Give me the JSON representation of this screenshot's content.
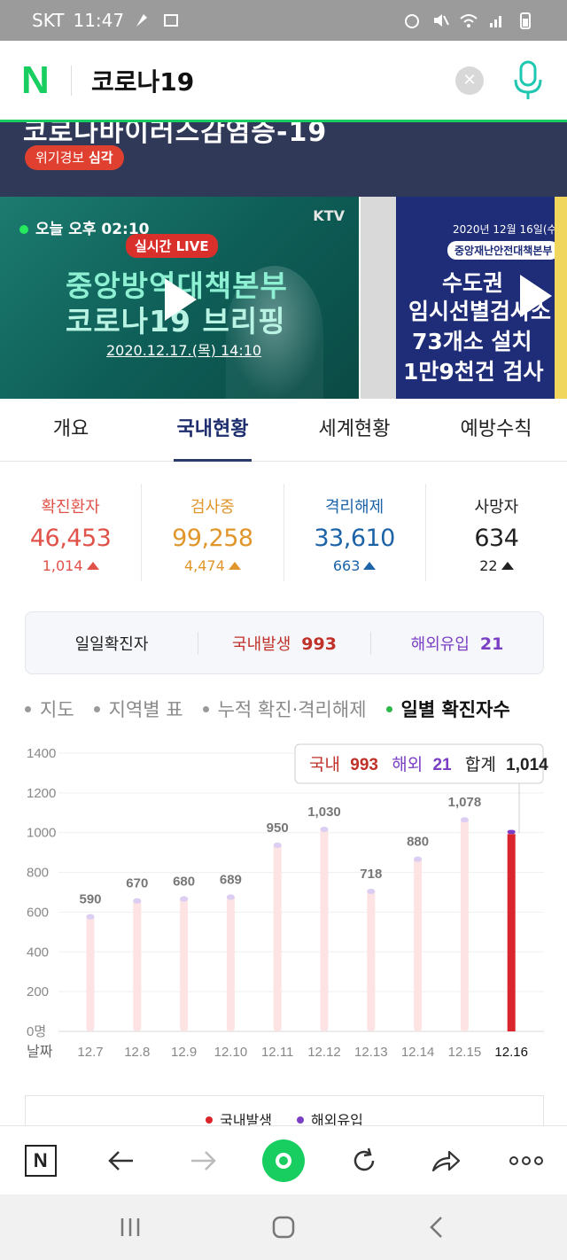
{
  "status_bar": {
    "carrier": "SKT",
    "time": "11:47"
  },
  "search": {
    "query": "코로나19"
  },
  "topic": {
    "title": "코로나바이러스감염증-19",
    "alert_label": "위기경보",
    "alert_level": "심각"
  },
  "videos": [
    {
      "time": "오늘 오후 02:10",
      "source": "KTV",
      "live": "실시간 LIVE",
      "line1": "중앙방역대책본부",
      "line2": "코로나19 브리핑",
      "date": "2020.12.17.(목) 14:10"
    },
    {
      "date": "2020년 12월 16일(수)",
      "org": "중앙재난안전대책본부",
      "line1": "수도권",
      "line2": "임시선별검사소",
      "line3": "73개소 설치",
      "line4": "1만9천건 검사"
    }
  ],
  "tabs": [
    "개요",
    "국내현황",
    "세계현황",
    "예방수칙"
  ],
  "stats": [
    {
      "label": "확진환자",
      "value": "46,453",
      "delta": "1,014",
      "color": "#e0524a"
    },
    {
      "label": "검사중",
      "value": "99,258",
      "delta": "4,474",
      "color": "#e0962b"
    },
    {
      "label": "격리해제",
      "value": "33,610",
      "delta": "663",
      "color": "#1d63a8"
    },
    {
      "label": "사망자",
      "value": "634",
      "delta": "22",
      "color": "#222222"
    }
  ],
  "daily": {
    "label": "일일확진자",
    "domestic_label": "국내발생",
    "domestic_value": "993",
    "overseas_label": "해외유입",
    "overseas_value": "21"
  },
  "chart_tabs": [
    "지도",
    "지역별 표",
    "누적 확진·격리해제",
    "일별 확진자수"
  ],
  "tooltip": {
    "domestic_label": "국내",
    "domestic": "993",
    "overseas_label": "해외",
    "overseas": "21",
    "total_label": "합계",
    "total": "1,014"
  },
  "legend": {
    "domestic": "국내발생",
    "overseas": "해외유입"
  },
  "chart_data": {
    "type": "bar",
    "categories": [
      "12.7",
      "12.8",
      "12.9",
      "12.10",
      "12.11",
      "12.12",
      "12.13",
      "12.14",
      "12.15",
      "12.16"
    ],
    "values": [
      590,
      670,
      680,
      689,
      950,
      1030,
      718,
      880,
      1078,
      1014
    ],
    "labels": [
      "590",
      "670",
      "680",
      "689",
      "950",
      "1,030",
      "718",
      "880",
      "1,078",
      ""
    ],
    "yticks": [
      "0명",
      "200",
      "400",
      "600",
      "800",
      "1000",
      "1200",
      "1400"
    ],
    "ylim": [
      0,
      1400
    ],
    "x_axis_label": "날짜",
    "highlighted": {
      "category": "12.16",
      "domestic": 993,
      "overseas": 21
    },
    "colors": {
      "bar_faded": "#fde3e3",
      "bar_top_faded": "#dccdf2",
      "domestic": "#d9252b",
      "overseas": "#7a3fc4"
    }
  }
}
